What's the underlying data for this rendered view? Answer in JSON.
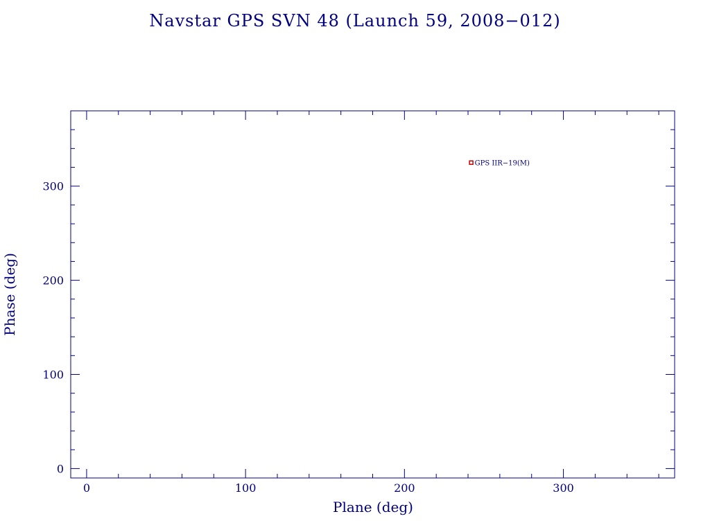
{
  "chart_data": {
    "type": "scatter",
    "title": "Navstar GPS SVN 48 (Launch 59, 2008−012)",
    "xlabel": "Plane (deg)",
    "ylabel": "Phase (deg)",
    "xlim": [
      -10,
      370
    ],
    "ylim": [
      -10,
      380
    ],
    "xticks": [
      0,
      100,
      200,
      300
    ],
    "yticks": [
      0,
      100,
      200,
      300
    ],
    "x_minor_step": 20,
    "y_minor_step": 20,
    "grid": false,
    "points": [
      {
        "x": 242,
        "y": 325,
        "label": "GPS IIR−19(M)"
      }
    ]
  },
  "colors": {
    "axis": "#000080",
    "text": "#000080",
    "marker": "#cc0000"
  }
}
